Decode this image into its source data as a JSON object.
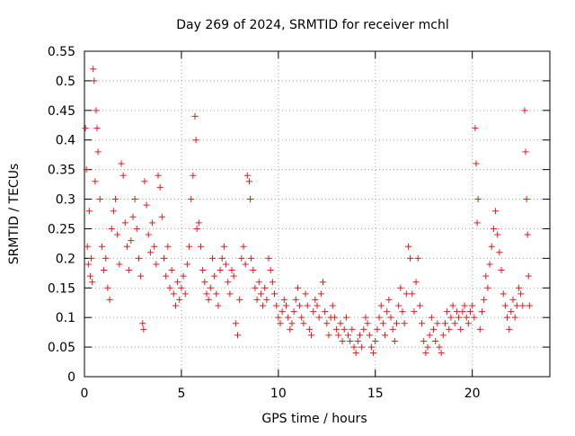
{
  "chart_data": {
    "type": "scatter",
    "title": "Day 269 of 2024, SRMTID for receiver mchl",
    "xlabel": "GPS time / hours",
    "ylabel": "SRMTID / TECUs",
    "xlim": [
      0,
      24
    ],
    "ylim": [
      0,
      0.55
    ],
    "x_ticks": [
      0,
      5,
      10,
      15,
      20
    ],
    "x_tick_labels": [
      "0",
      "5",
      "10",
      "15",
      "20"
    ],
    "y_ticks": [
      0,
      0.05,
      0.1,
      0.15,
      0.2,
      0.25,
      0.3,
      0.35,
      0.4,
      0.45,
      0.5,
      0.55
    ],
    "y_tick_labels": [
      "0",
      "0.05",
      "0.1",
      "0.15",
      "0.2",
      "0.25",
      "0.3",
      "0.35",
      "0.4",
      "0.45",
      "0.5",
      "0.55"
    ],
    "grid": true,
    "marker": "+",
    "color": "#e41a1c",
    "series": [
      {
        "name": "SRMTID",
        "points": [
          [
            0.05,
            0.42
          ],
          [
            0.1,
            0.35
          ],
          [
            0.15,
            0.22
          ],
          [
            0.2,
            0.19
          ],
          [
            0.25,
            0.28
          ],
          [
            0.3,
            0.17
          ],
          [
            0.35,
            0.2
          ],
          [
            0.4,
            0.16
          ],
          [
            0.45,
            0.52
          ],
          [
            0.5,
            0.5
          ],
          [
            0.55,
            0.33
          ],
          [
            0.6,
            0.45
          ],
          [
            0.65,
            0.42
          ],
          [
            0.7,
            0.38
          ],
          [
            0.8,
            0.3
          ],
          [
            0.9,
            0.22
          ],
          [
            1.0,
            0.18
          ],
          [
            1.1,
            0.2
          ],
          [
            1.2,
            0.15
          ],
          [
            1.3,
            0.13
          ],
          [
            1.4,
            0.25
          ],
          [
            1.5,
            0.28
          ],
          [
            1.6,
            0.3
          ],
          [
            1.7,
            0.24
          ],
          [
            1.8,
            0.19
          ],
          [
            1.9,
            0.36
          ],
          [
            2.0,
            0.34
          ],
          [
            2.1,
            0.26
          ],
          [
            2.2,
            0.22
          ],
          [
            2.3,
            0.18
          ],
          [
            2.4,
            0.23
          ],
          [
            2.5,
            0.27
          ],
          [
            2.6,
            0.3
          ],
          [
            2.7,
            0.25
          ],
          [
            2.8,
            0.2
          ],
          [
            2.9,
            0.17
          ],
          [
            3.0,
            0.09
          ],
          [
            3.05,
            0.08
          ],
          [
            3.1,
            0.33
          ],
          [
            3.2,
            0.29
          ],
          [
            3.3,
            0.24
          ],
          [
            3.4,
            0.21
          ],
          [
            3.5,
            0.26
          ],
          [
            3.6,
            0.22
          ],
          [
            3.7,
            0.19
          ],
          [
            3.8,
            0.34
          ],
          [
            3.9,
            0.32
          ],
          [
            4.0,
            0.27
          ],
          [
            4.1,
            0.2
          ],
          [
            4.2,
            0.17
          ],
          [
            4.3,
            0.22
          ],
          [
            4.4,
            0.15
          ],
          [
            4.5,
            0.18
          ],
          [
            4.6,
            0.14
          ],
          [
            4.7,
            0.12
          ],
          [
            4.8,
            0.16
          ],
          [
            4.9,
            0.13
          ],
          [
            5.0,
            0.15
          ],
          [
            5.1,
            0.17
          ],
          [
            5.2,
            0.14
          ],
          [
            5.3,
            0.19
          ],
          [
            5.4,
            0.22
          ],
          [
            5.5,
            0.3
          ],
          [
            5.6,
            0.34
          ],
          [
            5.7,
            0.44
          ],
          [
            5.75,
            0.4
          ],
          [
            5.8,
            0.25
          ],
          [
            5.9,
            0.26
          ],
          [
            6.0,
            0.22
          ],
          [
            6.1,
            0.18
          ],
          [
            6.2,
            0.16
          ],
          [
            6.3,
            0.14
          ],
          [
            6.4,
            0.13
          ],
          [
            6.5,
            0.15
          ],
          [
            6.6,
            0.2
          ],
          [
            6.7,
            0.17
          ],
          [
            6.8,
            0.14
          ],
          [
            6.9,
            0.12
          ],
          [
            7.0,
            0.18
          ],
          [
            7.1,
            0.2
          ],
          [
            7.2,
            0.22
          ],
          [
            7.3,
            0.19
          ],
          [
            7.4,
            0.16
          ],
          [
            7.5,
            0.14
          ],
          [
            7.6,
            0.18
          ],
          [
            7.7,
            0.17
          ],
          [
            7.8,
            0.09
          ],
          [
            7.9,
            0.07
          ],
          [
            8.0,
            0.13
          ],
          [
            8.1,
            0.2
          ],
          [
            8.2,
            0.22
          ],
          [
            8.3,
            0.19
          ],
          [
            8.4,
            0.34
          ],
          [
            8.5,
            0.33
          ],
          [
            8.55,
            0.3
          ],
          [
            8.6,
            0.2
          ],
          [
            8.7,
            0.18
          ],
          [
            8.8,
            0.15
          ],
          [
            8.9,
            0.13
          ],
          [
            9.0,
            0.16
          ],
          [
            9.1,
            0.14
          ],
          [
            9.2,
            0.12
          ],
          [
            9.3,
            0.15
          ],
          [
            9.4,
            0.13
          ],
          [
            9.5,
            0.2
          ],
          [
            9.6,
            0.18
          ],
          [
            9.7,
            0.16
          ],
          [
            9.8,
            0.14
          ],
          [
            9.9,
            0.12
          ],
          [
            10.0,
            0.1
          ],
          [
            10.1,
            0.09
          ],
          [
            10.2,
            0.11
          ],
          [
            10.3,
            0.13
          ],
          [
            10.4,
            0.12
          ],
          [
            10.5,
            0.1
          ],
          [
            10.6,
            0.08
          ],
          [
            10.7,
            0.09
          ],
          [
            10.8,
            0.11
          ],
          [
            10.9,
            0.13
          ],
          [
            11.0,
            0.15
          ],
          [
            11.1,
            0.12
          ],
          [
            11.2,
            0.1
          ],
          [
            11.3,
            0.09
          ],
          [
            11.4,
            0.14
          ],
          [
            11.5,
            0.12
          ],
          [
            11.6,
            0.08
          ],
          [
            11.7,
            0.07
          ],
          [
            11.8,
            0.11
          ],
          [
            11.9,
            0.13
          ],
          [
            12.0,
            0.12
          ],
          [
            12.1,
            0.1
          ],
          [
            12.2,
            0.14
          ],
          [
            12.3,
            0.16
          ],
          [
            12.4,
            0.11
          ],
          [
            12.5,
            0.09
          ],
          [
            12.6,
            0.07
          ],
          [
            12.7,
            0.1
          ],
          [
            12.8,
            0.12
          ],
          [
            12.9,
            0.1
          ],
          [
            13.0,
            0.08
          ],
          [
            13.1,
            0.07
          ],
          [
            13.2,
            0.09
          ],
          [
            13.3,
            0.06
          ],
          [
            13.4,
            0.08
          ],
          [
            13.5,
            0.1
          ],
          [
            13.6,
            0.07
          ],
          [
            13.7,
            0.06
          ],
          [
            13.8,
            0.08
          ],
          [
            13.9,
            0.05
          ],
          [
            14.0,
            0.04
          ],
          [
            14.1,
            0.06
          ],
          [
            14.2,
            0.07
          ],
          [
            14.3,
            0.05
          ],
          [
            14.4,
            0.08
          ],
          [
            14.5,
            0.1
          ],
          [
            14.6,
            0.09
          ],
          [
            14.7,
            0.07
          ],
          [
            14.8,
            0.05
          ],
          [
            14.9,
            0.04
          ],
          [
            15.0,
            0.06
          ],
          [
            15.1,
            0.08
          ],
          [
            15.2,
            0.1
          ],
          [
            15.3,
            0.12
          ],
          [
            15.4,
            0.09
          ],
          [
            15.5,
            0.07
          ],
          [
            15.6,
            0.11
          ],
          [
            15.7,
            0.13
          ],
          [
            15.8,
            0.1
          ],
          [
            15.9,
            0.08
          ],
          [
            16.0,
            0.06
          ],
          [
            16.1,
            0.09
          ],
          [
            16.2,
            0.12
          ],
          [
            16.3,
            0.15
          ],
          [
            16.4,
            0.11
          ],
          [
            16.5,
            0.09
          ],
          [
            16.6,
            0.14
          ],
          [
            16.7,
            0.22
          ],
          [
            16.8,
            0.2
          ],
          [
            16.9,
            0.14
          ],
          [
            17.0,
            0.11
          ],
          [
            17.1,
            0.16
          ],
          [
            17.2,
            0.2
          ],
          [
            17.3,
            0.12
          ],
          [
            17.4,
            0.09
          ],
          [
            17.5,
            0.06
          ],
          [
            17.6,
            0.04
          ],
          [
            17.7,
            0.05
          ],
          [
            17.8,
            0.07
          ],
          [
            17.9,
            0.1
          ],
          [
            18.0,
            0.08
          ],
          [
            18.1,
            0.06
          ],
          [
            18.2,
            0.09
          ],
          [
            18.3,
            0.05
          ],
          [
            18.4,
            0.04
          ],
          [
            18.5,
            0.07
          ],
          [
            18.6,
            0.09
          ],
          [
            18.7,
            0.11
          ],
          [
            18.8,
            0.08
          ],
          [
            18.9,
            0.1
          ],
          [
            19.0,
            0.12
          ],
          [
            19.1,
            0.09
          ],
          [
            19.2,
            0.11
          ],
          [
            19.3,
            0.1
          ],
          [
            19.4,
            0.08
          ],
          [
            19.5,
            0.11
          ],
          [
            19.6,
            0.12
          ],
          [
            19.7,
            0.1
          ],
          [
            19.8,
            0.09
          ],
          [
            19.9,
            0.11
          ],
          [
            20.0,
            0.12
          ],
          [
            20.1,
            0.1
          ],
          [
            20.15,
            0.42
          ],
          [
            20.2,
            0.36
          ],
          [
            20.25,
            0.26
          ],
          [
            20.3,
            0.3
          ],
          [
            20.4,
            0.08
          ],
          [
            20.5,
            0.11
          ],
          [
            20.6,
            0.13
          ],
          [
            20.7,
            0.17
          ],
          [
            20.8,
            0.15
          ],
          [
            20.9,
            0.19
          ],
          [
            21.0,
            0.22
          ],
          [
            21.1,
            0.25
          ],
          [
            21.2,
            0.28
          ],
          [
            21.3,
            0.24
          ],
          [
            21.4,
            0.21
          ],
          [
            21.5,
            0.18
          ],
          [
            21.6,
            0.14
          ],
          [
            21.7,
            0.12
          ],
          [
            21.8,
            0.1
          ],
          [
            21.9,
            0.08
          ],
          [
            22.0,
            0.11
          ],
          [
            22.1,
            0.13
          ],
          [
            22.2,
            0.1
          ],
          [
            22.3,
            0.12
          ],
          [
            22.4,
            0.15
          ],
          [
            22.5,
            0.14
          ],
          [
            22.6,
            0.12
          ],
          [
            22.7,
            0.45
          ],
          [
            22.75,
            0.38
          ],
          [
            22.8,
            0.3
          ],
          [
            22.85,
            0.24
          ],
          [
            22.9,
            0.17
          ],
          [
            22.95,
            0.12
          ]
        ]
      }
    ]
  }
}
